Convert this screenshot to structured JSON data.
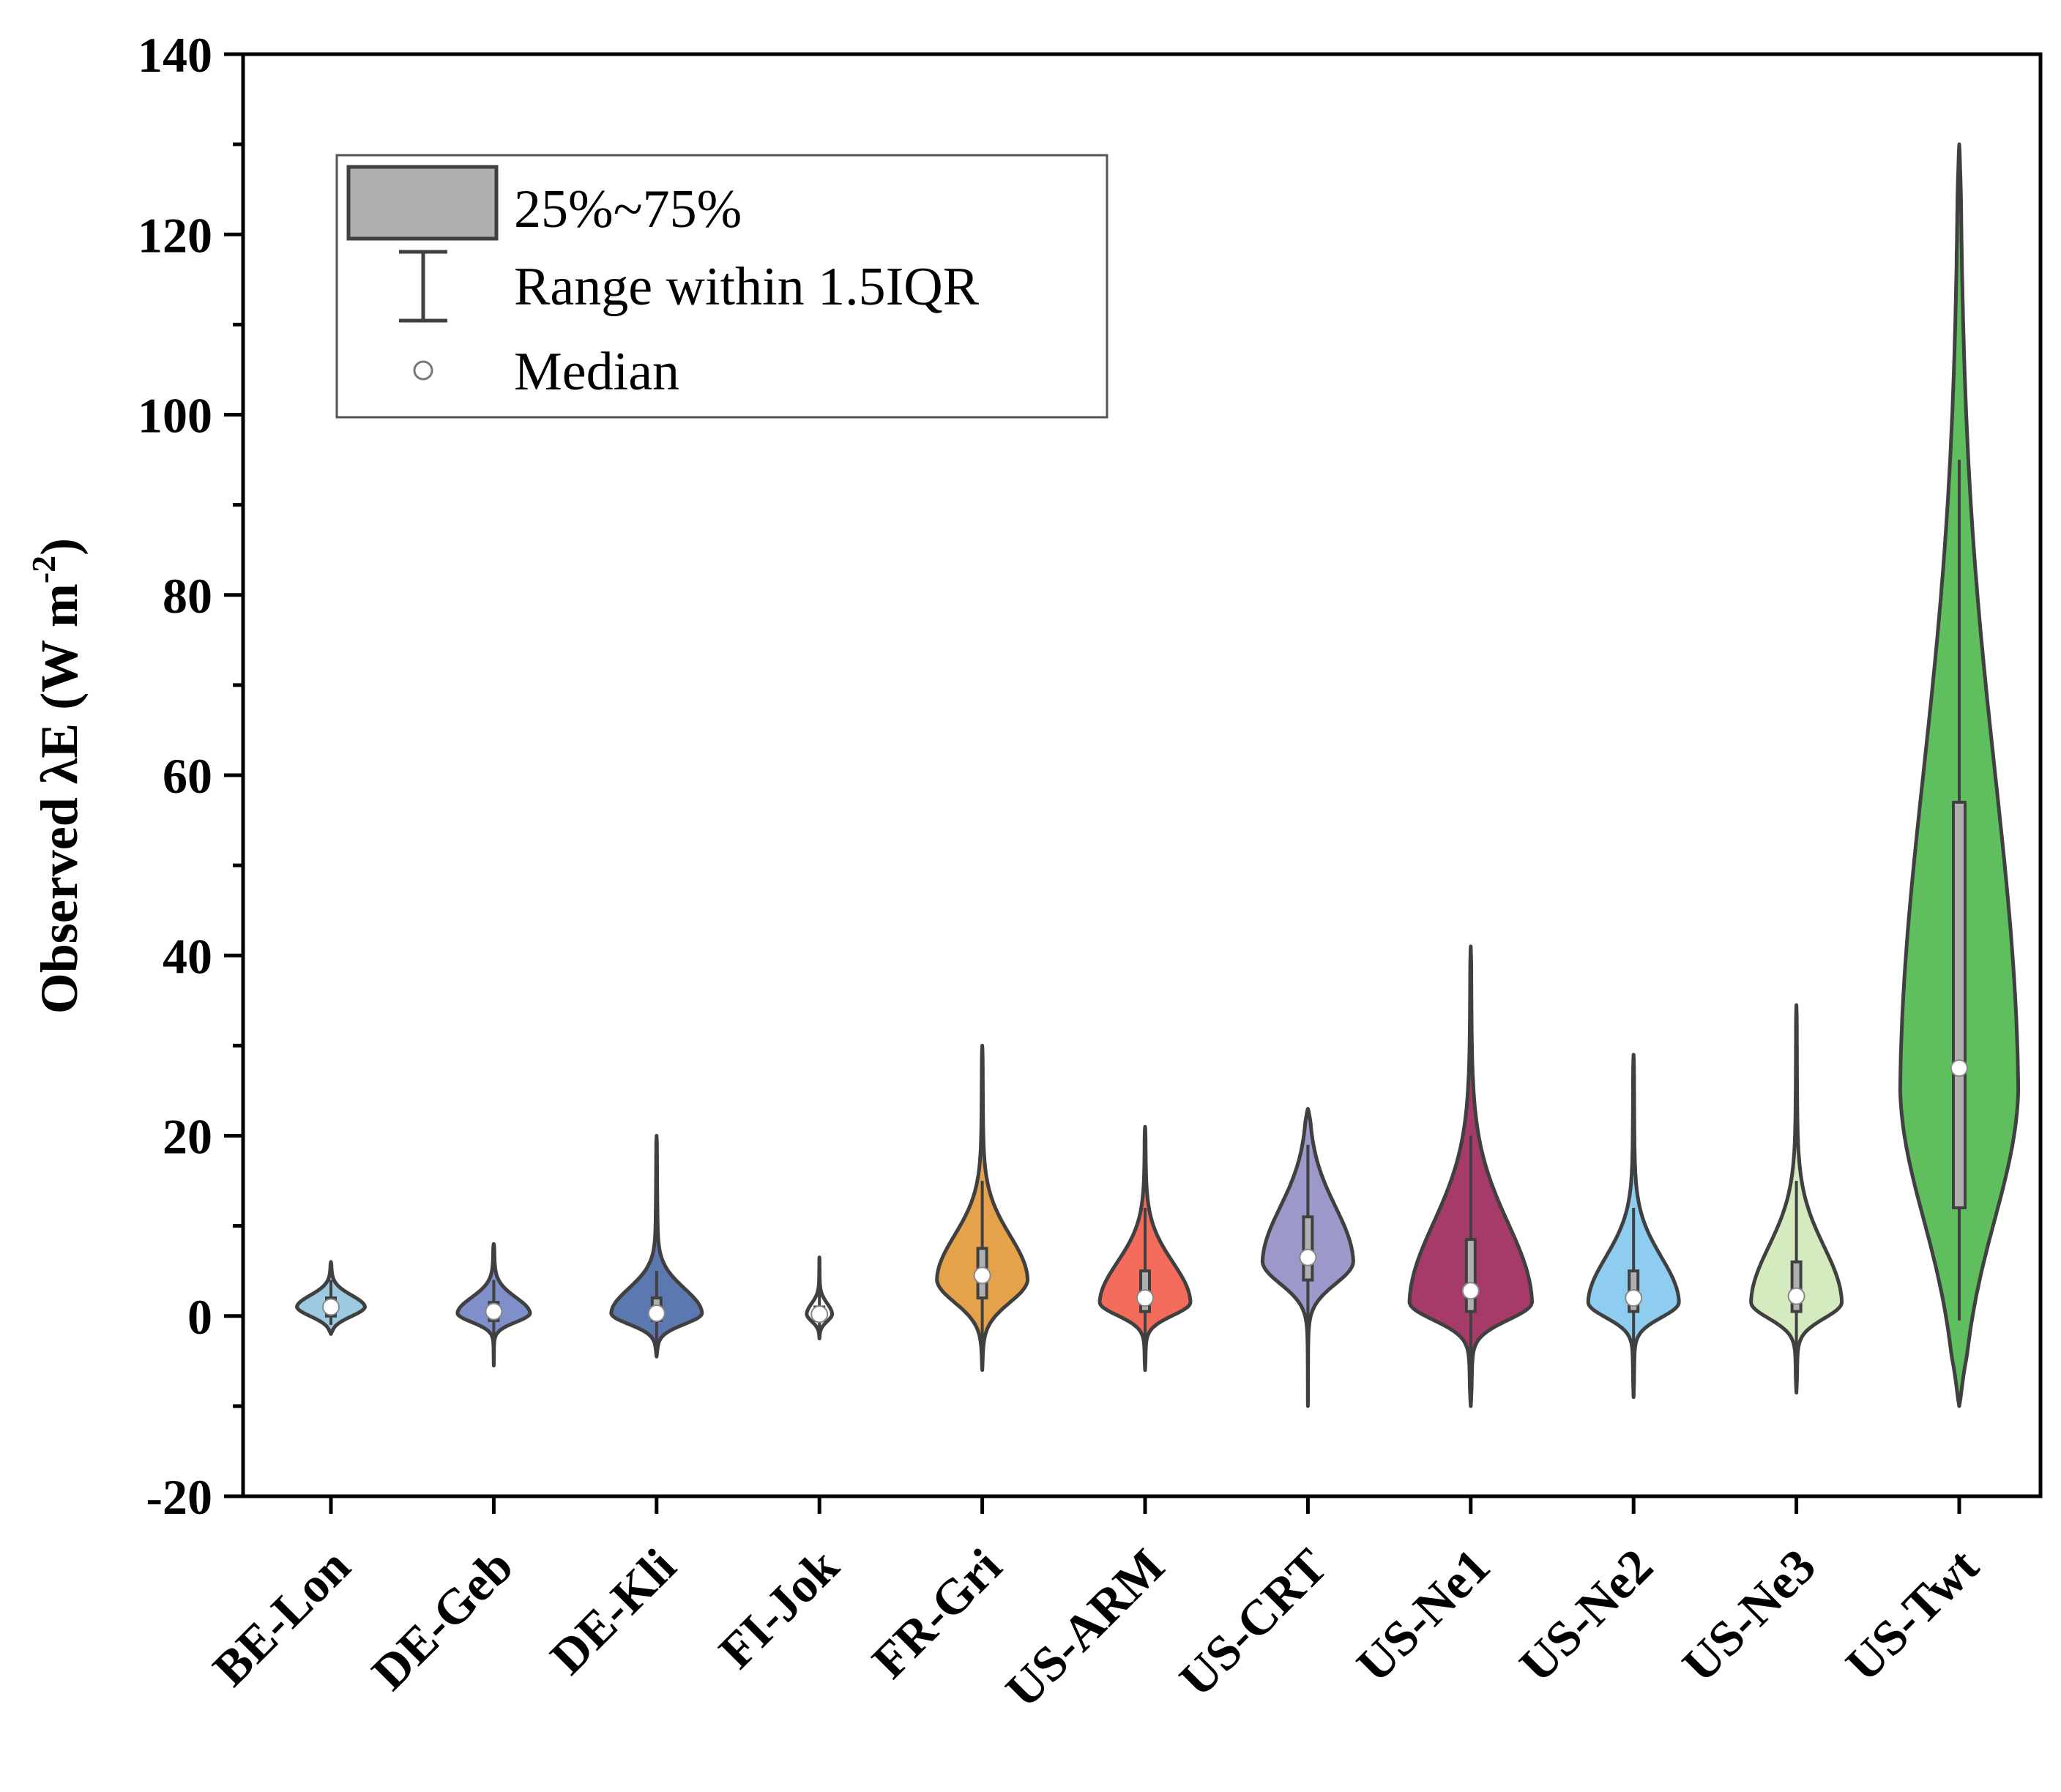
{
  "chart_data": {
    "type": "violin",
    "ylabel_prefix": "Observed λE (W m",
    "ylabel_sup": "-2",
    "ylabel_suffix": ")",
    "ylim": [
      -20,
      140
    ],
    "y_ticks": [
      -20,
      0,
      20,
      40,
      60,
      80,
      100,
      120,
      140
    ],
    "legend": {
      "box_label": "25%~75%",
      "whisker_label": "Range within 1.5IQR",
      "median_label": "Median",
      "position": "top-left"
    },
    "series": [
      {
        "name": "BE-Lon",
        "color": "#9ecae1",
        "min": -2,
        "max": 6,
        "q1": 0,
        "q3": 2,
        "whisker_low": -1,
        "whisker_high": 4,
        "median": 1,
        "peak": 1
      },
      {
        "name": "DE-Geb",
        "color": "#7e8fc9",
        "min": -5.5,
        "max": 8,
        "q1": -0.5,
        "q3": 1.5,
        "whisker_low": -3,
        "whisker_high": 4,
        "median": 0.5,
        "peak": 0.3
      },
      {
        "name": "DE-Kli",
        "color": "#5b78b0",
        "min": -4.5,
        "max": 20,
        "q1": -0.5,
        "q3": 2,
        "whisker_low": -3,
        "whisker_high": 5,
        "median": 0.3,
        "peak": 0.3
      },
      {
        "name": "FI-Jok",
        "color": "#ffffff",
        "min": -2.5,
        "max": 6.5,
        "q1": -0.5,
        "q3": 1,
        "whisker_low": -2,
        "whisker_high": 3,
        "median": 0.2,
        "peak": 0.2
      },
      {
        "name": "FR-Gri",
        "color": "#e6a24a",
        "min": -6,
        "max": 30,
        "q1": 2,
        "q3": 7.5,
        "whisker_low": -3,
        "whisker_high": 15,
        "median": 4.5,
        "peak": 4
      },
      {
        "name": "US-ARM",
        "color": "#f26b5b",
        "min": -6,
        "max": 21,
        "q1": 0.5,
        "q3": 5,
        "whisker_low": -4,
        "whisker_high": 12,
        "median": 2,
        "peak": 1.5
      },
      {
        "name": "US-CRT",
        "color": "#9b99c9",
        "min": -10,
        "max": 23,
        "q1": 4,
        "q3": 11,
        "whisker_low": -2,
        "whisker_high": 19,
        "median": 6.5,
        "peak": 6
      },
      {
        "name": "US-Ne1",
        "color": "#a63b6a",
        "min": -10,
        "max": 41,
        "q1": 0.5,
        "q3": 8.5,
        "whisker_low": -9,
        "whisker_high": 20,
        "median": 2.8,
        "peak": 1.5
      },
      {
        "name": "US-Ne2",
        "color": "#8ecdf0",
        "min": -9,
        "max": 29,
        "q1": 0.5,
        "q3": 5,
        "whisker_low": -6,
        "whisker_high": 12,
        "median": 2,
        "peak": 1.5
      },
      {
        "name": "US-Ne3",
        "color": "#d4eabf",
        "min": -8.5,
        "max": 34.5,
        "q1": 0.5,
        "q3": 6,
        "whisker_low": -6,
        "whisker_high": 15,
        "median": 2.2,
        "peak": 1.5
      },
      {
        "name": "US-Twt",
        "color": "#5fbf5f",
        "min": -10,
        "max": 130,
        "q1": 12,
        "q3": 57,
        "whisker_low": -0.5,
        "whisker_high": 95,
        "median": 27.5,
        "peak": 25
      }
    ],
    "colors": {
      "axis": "#000000",
      "outline": "#404040",
      "box": "#b0b0b0",
      "median_fill": "#ffffff"
    }
  }
}
